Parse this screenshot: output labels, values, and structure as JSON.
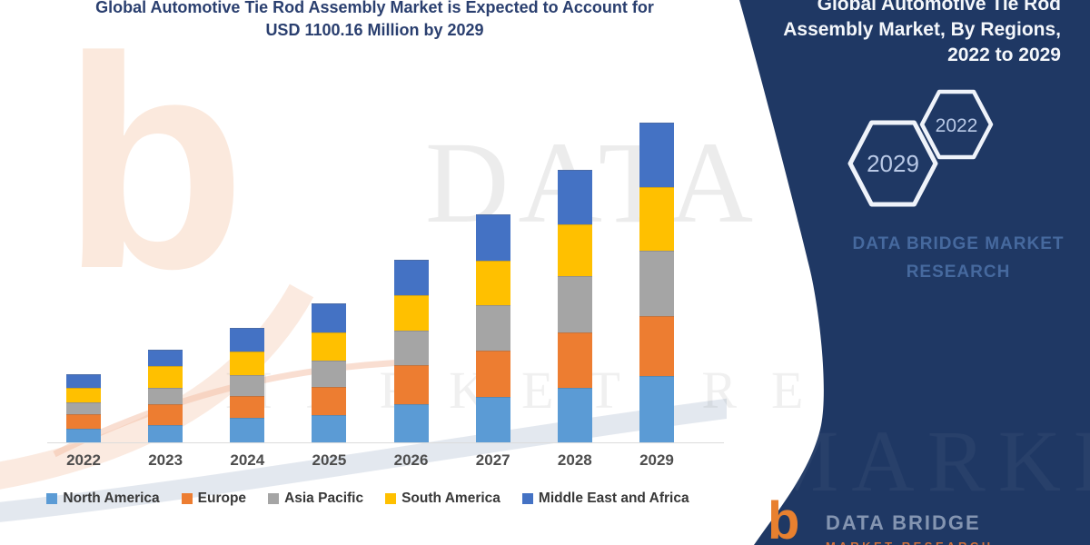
{
  "header": {
    "title_line1": "Global Automotive Tie Rod Assembly Market is Expected to Account for",
    "title_line2": "USD 1100.16 Million by 2029"
  },
  "panel": {
    "title": "Global Automotive Tie Rod Assembly Market, By Regions, 2022 to 2029",
    "bg_color": "#1F3864",
    "hexagons": [
      {
        "label": "2029"
      },
      {
        "label": "2022"
      }
    ],
    "brand_line1": "DATA BRIDGE MARKET",
    "brand_line2": "RESEARCH"
  },
  "logo": {
    "mark": "b",
    "name": "DATA BRIDGE",
    "subname": "MARKET RESEARCH"
  },
  "watermark": {
    "letter": "b",
    "big_text": "DATA BRIDGE",
    "sub_text": "MARKET RESEARCH"
  },
  "chart_data": {
    "type": "bar",
    "stacked": true,
    "title": "Global Automotive Tie Rod Assembly Market, By Regions, 2022 to 2029",
    "unit": "USD Million",
    "annotation": "USD 1100.16 Million by 2029",
    "categories": [
      "2022",
      "2023",
      "2024",
      "2025",
      "2026",
      "2027",
      "2028",
      "2029"
    ],
    "series": [
      {
        "name": "North America",
        "color": "#5B9BD5",
        "values": [
          46,
          59,
          83,
          94,
          130,
          156,
          187,
          228
        ]
      },
      {
        "name": "Europe",
        "color": "#ED7D31",
        "values": [
          52,
          72,
          78,
          96,
          135,
          161,
          192,
          208
        ]
      },
      {
        "name": "Asia Pacific",
        "color": "#A5A5A5",
        "values": [
          40,
          58,
          70,
          90,
          118,
          156,
          192,
          224
        ]
      },
      {
        "name": "South America",
        "color": "#FFC000",
        "values": [
          49,
          73,
          81,
          98,
          122,
          151,
          179,
          218
        ]
      },
      {
        "name": "Middle East and Africa",
        "color": "#4472C4",
        "values": [
          49,
          58,
          81,
          99,
          122,
          161,
          189,
          222
        ]
      }
    ],
    "totals": [
      236,
      320,
      393,
      477,
      627,
      785,
      939,
      1100.16
    ],
    "xlabel": "",
    "ylabel": "",
    "ylim": [
      0,
      1150
    ],
    "grid": false,
    "legend_position": "bottom"
  }
}
